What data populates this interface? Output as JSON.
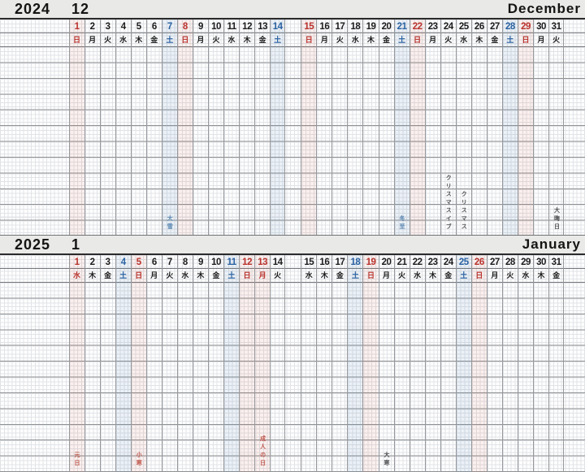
{
  "colors": {
    "red": "#bb332d",
    "blue": "#2a62a3",
    "black": "#1d1d1d",
    "ann_red": "#c0584c",
    "ann_blue": "#5b87b2",
    "ann_gray": "#4f5052",
    "tint_pink": "rgba(213,110,90,0.10)",
    "tint_blue": "rgba(104,144,186,0.13)",
    "bar_bg": "#e9e9e7",
    "bar_text": "#141414"
  },
  "months": [
    {
      "year": "2024",
      "month_number": "12",
      "month_name": "December",
      "days": [
        {
          "n": 1,
          "dow": "日",
          "color": "red",
          "tint": "pink"
        },
        {
          "n": 2,
          "dow": "月",
          "color": "black",
          "tint": null
        },
        {
          "n": 3,
          "dow": "火",
          "color": "black",
          "tint": null
        },
        {
          "n": 4,
          "dow": "水",
          "color": "black",
          "tint": null
        },
        {
          "n": 5,
          "dow": "木",
          "color": "black",
          "tint": null
        },
        {
          "n": 6,
          "dow": "金",
          "color": "black",
          "tint": null
        },
        {
          "n": 7,
          "dow": "土",
          "color": "blue",
          "tint": "blue"
        },
        {
          "n": 8,
          "dow": "日",
          "color": "red",
          "tint": "pink"
        },
        {
          "n": 9,
          "dow": "月",
          "color": "black",
          "tint": null
        },
        {
          "n": 10,
          "dow": "火",
          "color": "black",
          "tint": null
        },
        {
          "n": 11,
          "dow": "水",
          "color": "black",
          "tint": null
        },
        {
          "n": 12,
          "dow": "木",
          "color": "black",
          "tint": null
        },
        {
          "n": 13,
          "dow": "金",
          "color": "black",
          "tint": null
        },
        {
          "n": 14,
          "dow": "土",
          "color": "blue",
          "tint": "blue"
        },
        {
          "n": 15,
          "dow": "日",
          "color": "red",
          "tint": "pink"
        },
        {
          "n": 16,
          "dow": "月",
          "color": "black",
          "tint": null
        },
        {
          "n": 17,
          "dow": "火",
          "color": "black",
          "tint": null
        },
        {
          "n": 18,
          "dow": "水",
          "color": "black",
          "tint": null
        },
        {
          "n": 19,
          "dow": "木",
          "color": "black",
          "tint": null
        },
        {
          "n": 20,
          "dow": "金",
          "color": "black",
          "tint": null
        },
        {
          "n": 21,
          "dow": "土",
          "color": "blue",
          "tint": "blue"
        },
        {
          "n": 22,
          "dow": "日",
          "color": "red",
          "tint": "pink"
        },
        {
          "n": 23,
          "dow": "月",
          "color": "black",
          "tint": null
        },
        {
          "n": 24,
          "dow": "火",
          "color": "black",
          "tint": null
        },
        {
          "n": 25,
          "dow": "水",
          "color": "black",
          "tint": null
        },
        {
          "n": 26,
          "dow": "木",
          "color": "black",
          "tint": null
        },
        {
          "n": 27,
          "dow": "金",
          "color": "black",
          "tint": null
        },
        {
          "n": 28,
          "dow": "土",
          "color": "blue",
          "tint": "blue"
        },
        {
          "n": 29,
          "dow": "日",
          "color": "red",
          "tint": "pink"
        },
        {
          "n": 30,
          "dow": "月",
          "color": "black",
          "tint": null
        },
        {
          "n": 31,
          "dow": "火",
          "color": "black",
          "tint": null
        }
      ],
      "annotations": [
        {
          "day": 7,
          "text": "大雪",
          "color": "blue"
        },
        {
          "day": 21,
          "text": "冬至",
          "color": "blue"
        },
        {
          "day": 24,
          "text": "クリスマスイブ",
          "color": "gray"
        },
        {
          "day": 25,
          "text": "クリスマス",
          "color": "gray"
        },
        {
          "day": 31,
          "text": "大晦日",
          "color": "gray"
        }
      ]
    },
    {
      "year": "2025",
      "month_number": "1",
      "month_name": "January",
      "days": [
        {
          "n": 1,
          "dow": "水",
          "color": "red",
          "tint": "pink"
        },
        {
          "n": 2,
          "dow": "木",
          "color": "black",
          "tint": null
        },
        {
          "n": 3,
          "dow": "金",
          "color": "black",
          "tint": null
        },
        {
          "n": 4,
          "dow": "土",
          "color": "blue",
          "tint": "blue"
        },
        {
          "n": 5,
          "dow": "日",
          "color": "red",
          "tint": "pink"
        },
        {
          "n": 6,
          "dow": "月",
          "color": "black",
          "tint": null
        },
        {
          "n": 7,
          "dow": "火",
          "color": "black",
          "tint": null
        },
        {
          "n": 8,
          "dow": "水",
          "color": "black",
          "tint": null
        },
        {
          "n": 9,
          "dow": "木",
          "color": "black",
          "tint": null
        },
        {
          "n": 10,
          "dow": "金",
          "color": "black",
          "tint": null
        },
        {
          "n": 11,
          "dow": "土",
          "color": "blue",
          "tint": "blue"
        },
        {
          "n": 12,
          "dow": "日",
          "color": "red",
          "tint": "pink"
        },
        {
          "n": 13,
          "dow": "月",
          "color": "red",
          "tint": "pink"
        },
        {
          "n": 14,
          "dow": "火",
          "color": "black",
          "tint": null
        },
        {
          "n": 15,
          "dow": "水",
          "color": "black",
          "tint": null
        },
        {
          "n": 16,
          "dow": "木",
          "color": "black",
          "tint": null
        },
        {
          "n": 17,
          "dow": "金",
          "color": "black",
          "tint": null
        },
        {
          "n": 18,
          "dow": "土",
          "color": "blue",
          "tint": "blue"
        },
        {
          "n": 19,
          "dow": "日",
          "color": "red",
          "tint": "pink"
        },
        {
          "n": 20,
          "dow": "月",
          "color": "black",
          "tint": null
        },
        {
          "n": 21,
          "dow": "火",
          "color": "black",
          "tint": null
        },
        {
          "n": 22,
          "dow": "水",
          "color": "black",
          "tint": null
        },
        {
          "n": 23,
          "dow": "木",
          "color": "black",
          "tint": null
        },
        {
          "n": 24,
          "dow": "金",
          "color": "black",
          "tint": null
        },
        {
          "n": 25,
          "dow": "土",
          "color": "blue",
          "tint": "blue"
        },
        {
          "n": 26,
          "dow": "日",
          "color": "red",
          "tint": "pink"
        },
        {
          "n": 27,
          "dow": "月",
          "color": "black",
          "tint": null
        },
        {
          "n": 28,
          "dow": "火",
          "color": "black",
          "tint": null
        },
        {
          "n": 29,
          "dow": "水",
          "color": "black",
          "tint": null
        },
        {
          "n": 30,
          "dow": "木",
          "color": "black",
          "tint": null
        },
        {
          "n": 31,
          "dow": "金",
          "color": "black",
          "tint": null
        }
      ],
      "annotations": [
        {
          "day": 1,
          "text": "元日",
          "color": "red"
        },
        {
          "day": 5,
          "text": "小寒",
          "color": "red"
        },
        {
          "day": 13,
          "text": "成人の日",
          "color": "red"
        },
        {
          "day": 20,
          "text": "大寒",
          "color": "gray"
        }
      ]
    }
  ]
}
